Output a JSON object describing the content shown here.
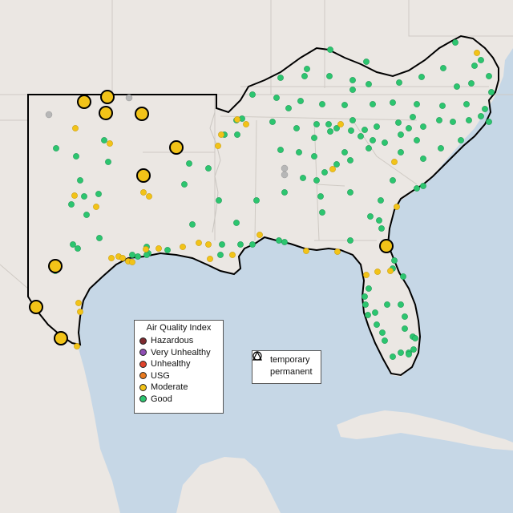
{
  "legend": {
    "title": "Air Quality Index",
    "categories": [
      {
        "label": "Hazardous",
        "color": "#7e2a2f"
      },
      {
        "label": "Very Unhealthy",
        "color": "#8f4fb4"
      },
      {
        "label": "Unhealthy",
        "color": "#e0432c"
      },
      {
        "label": "USG",
        "color": "#e97a1f"
      },
      {
        "label": "Moderate",
        "color": "#f2c318"
      },
      {
        "label": "Good",
        "color": "#2cc56f"
      }
    ],
    "monitor_types": [
      {
        "label": "temporary",
        "symbol": "circle-icon"
      },
      {
        "label": "permanent",
        "symbol": "triangle-icon"
      }
    ]
  },
  "colors": {
    "water": "#c6d7e6",
    "land": "#ebe7e3",
    "region_outline": "#000000",
    "state_borders": "#c9c5c0",
    "missing": "#b7b7b7"
  },
  "map_region": "Southeastern United States"
}
